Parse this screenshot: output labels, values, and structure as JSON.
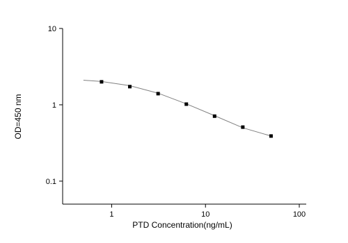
{
  "chart_data": {
    "type": "scatter",
    "x_label": "PTD Concentration(ng/mL)",
    "y_label": "OD=450 nm",
    "x": [
      0.78,
      1.56,
      3.125,
      6.25,
      12.5,
      25,
      50
    ],
    "values": [
      2.0,
      1.73,
      1.4,
      1.02,
      0.71,
      0.51,
      0.39
    ],
    "color": "#000000",
    "curve": {
      "x": [
        0.5,
        0.78,
        1.56,
        3.125,
        6.25,
        12.5,
        25,
        50
      ],
      "values": [
        2.1,
        2.02,
        1.78,
        1.42,
        1.03,
        0.72,
        0.5,
        0.39
      ],
      "color": "#808080"
    },
    "xlog": true,
    "ylog": true,
    "xlim": [
      0.3,
      100
    ],
    "ylim": [
      0.05,
      10
    ],
    "xticks": [
      1,
      10,
      100
    ],
    "yticks": [
      0.1,
      1,
      10
    ]
  }
}
